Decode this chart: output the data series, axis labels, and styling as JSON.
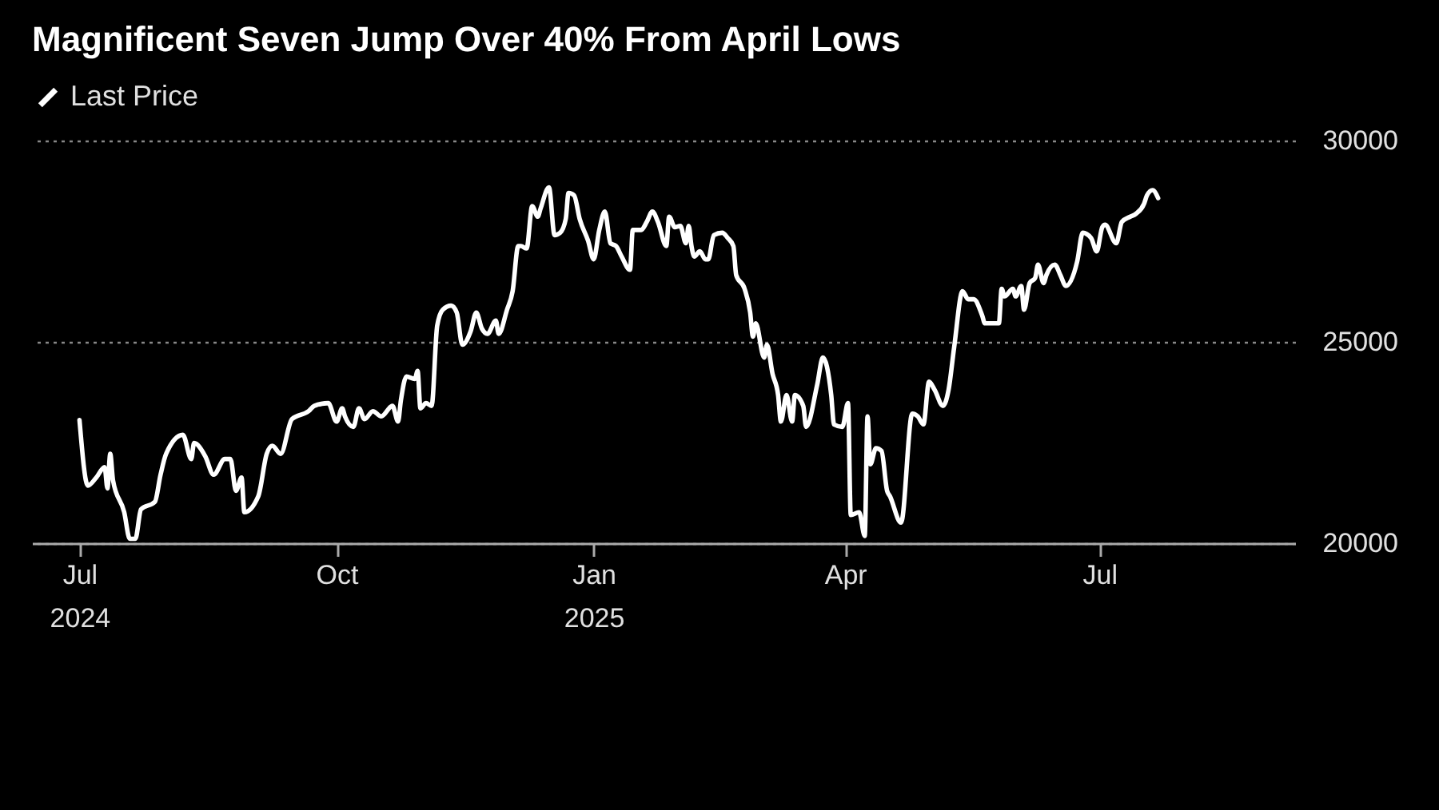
{
  "chart_data": {
    "type": "line",
    "title": "Magnificent Seven Jump Over 40% From April Lows",
    "x": [
      "2024-07-01",
      "2024-07-04",
      "2024-07-07",
      "2024-07-10",
      "2024-07-11",
      "2024-07-12",
      "2024-07-13",
      "2024-07-17",
      "2024-07-19",
      "2024-07-21",
      "2024-07-23",
      "2024-07-28",
      "2024-07-30",
      "2024-08-01",
      "2024-08-07",
      "2024-08-10",
      "2024-08-11",
      "2024-08-15",
      "2024-08-18",
      "2024-08-22",
      "2024-08-24",
      "2024-08-26",
      "2024-08-28",
      "2024-08-29",
      "2024-09-03",
      "2024-09-06",
      "2024-09-08",
      "2024-09-11",
      "2024-09-15",
      "2024-09-21",
      "2024-09-23",
      "2024-09-28",
      "2024-10-01",
      "2024-10-03",
      "2024-10-04",
      "2024-10-07",
      "2024-10-09",
      "2024-10-11",
      "2024-10-14",
      "2024-10-17",
      "2024-10-21",
      "2024-10-23",
      "2024-10-24",
      "2024-10-26",
      "2024-10-29",
      "2024-10-30",
      "2024-10-31",
      "2024-11-02",
      "2024-11-04",
      "2024-11-06",
      "2024-11-08",
      "2024-11-11",
      "2024-11-13",
      "2024-11-15",
      "2024-11-18",
      "2024-11-20",
      "2024-11-22",
      "2024-11-24",
      "2024-11-27",
      "2024-11-28",
      "2024-12-01",
      "2024-12-03",
      "2024-12-05",
      "2024-12-06",
      "2024-12-08",
      "2024-12-10",
      "2024-12-12",
      "2024-12-13",
      "2024-12-16",
      "2024-12-18",
      "2024-12-20",
      "2024-12-22",
      "2024-12-23",
      "2024-12-25",
      "2024-12-27",
      "2024-12-30",
      "2025-01-01",
      "2025-01-03",
      "2025-01-05",
      "2025-01-07",
      "2025-01-09",
      "2025-01-11",
      "2025-01-14",
      "2025-01-15",
      "2025-01-18",
      "2025-01-20",
      "2025-01-22",
      "2025-01-24",
      "2025-01-27",
      "2025-01-28",
      "2025-01-30",
      "2025-02-01",
      "2025-02-03",
      "2025-02-04",
      "2025-02-05",
      "2025-02-06",
      "2025-02-08",
      "2025-02-10",
      "2025-02-11",
      "2025-02-13",
      "2025-02-16",
      "2025-02-18",
      "2025-02-20",
      "2025-02-21",
      "2025-02-24",
      "2025-02-26",
      "2025-02-27",
      "2025-02-28",
      "2025-03-03",
      "2025-03-04",
      "2025-03-06",
      "2025-03-08",
      "2025-03-09",
      "2025-03-11",
      "2025-03-13",
      "2025-03-14",
      "2025-03-17",
      "2025-03-18",
      "2025-03-22",
      "2025-03-24",
      "2025-03-27",
      "2025-03-28",
      "2025-03-31",
      "2025-04-02",
      "2025-04-03",
      "2025-04-06",
      "2025-04-08",
      "2025-04-09",
      "2025-04-10",
      "2025-04-12",
      "2025-04-14",
      "2025-04-16",
      "2025-04-17",
      "2025-04-21",
      "2025-04-25",
      "2025-04-27",
      "2025-04-29",
      "2025-05-01",
      "2025-05-03",
      "2025-05-06",
      "2025-05-08",
      "2025-05-10",
      "2025-05-13",
      "2025-05-15",
      "2025-05-17",
      "2025-05-20",
      "2025-05-21",
      "2025-05-24",
      "2025-05-26",
      "2025-05-27",
      "2025-05-28",
      "2025-05-31",
      "2025-06-01",
      "2025-06-03",
      "2025-06-04",
      "2025-06-06",
      "2025-06-08",
      "2025-06-09",
      "2025-06-11",
      "2025-06-12",
      "2025-06-15",
      "2025-06-17",
      "2025-06-19",
      "2025-06-23",
      "2025-06-25",
      "2025-06-28",
      "2025-06-30",
      "2025-07-02",
      "2025-07-03",
      "2025-07-07",
      "2025-07-09",
      "2025-07-12",
      "2025-07-14",
      "2025-07-17",
      "2025-07-18",
      "2025-07-20",
      "2025-07-22"
    ],
    "series": [
      {
        "name": "Last Price",
        "color": "#ffffff",
        "values": [
          23060,
          21430,
          21630,
          21890,
          21360,
          22220,
          21560,
          20770,
          20110,
          20110,
          20840,
          21030,
          21700,
          22220,
          22690,
          22090,
          22490,
          22160,
          21700,
          22090,
          22090,
          21300,
          21630,
          20770,
          21170,
          22220,
          22420,
          22220,
          23080,
          23280,
          23410,
          23480,
          23020,
          23350,
          23150,
          22890,
          23350,
          23080,
          23280,
          23150,
          23410,
          23020,
          23540,
          24140,
          24080,
          24280,
          23350,
          23480,
          23410,
          25400,
          25800,
          25900,
          25730,
          24930,
          25270,
          25730,
          25330,
          25200,
          25530,
          25200,
          25800,
          26260,
          27380,
          27380,
          27320,
          28370,
          28110,
          28310,
          28840,
          27650,
          27710,
          28050,
          28700,
          28640,
          28050,
          27510,
          27050,
          27780,
          28240,
          27450,
          27380,
          27120,
          26790,
          27780,
          27780,
          27980,
          28240,
          27980,
          27380,
          28110,
          27850,
          27880,
          27450,
          27880,
          27380,
          27120,
          27250,
          27050,
          27050,
          27650,
          27710,
          27580,
          27380,
          26660,
          26320,
          25730,
          25130,
          25460,
          24610,
          24930,
          24210,
          23680,
          23020,
          23680,
          23020,
          23680,
          23410,
          22890,
          23940,
          24610,
          23680,
          22950,
          22890,
          23480,
          20700,
          20770,
          20180,
          23150,
          21960,
          22360,
          22290,
          21300,
          21170,
          20510,
          23220,
          23150,
          22950,
          24010,
          23810,
          23410,
          23810,
          24870,
          26260,
          26060,
          26060,
          25660,
          25460,
          25460,
          25460,
          26320,
          26130,
          26320,
          26130,
          26390,
          25800,
          26460,
          26590,
          26920,
          26460,
          26660,
          26920,
          26660,
          26390,
          26990,
          27710,
          27580,
          27250,
          27850,
          27910,
          27450,
          27980,
          28110,
          28180,
          28440,
          28640,
          28770,
          28570
        ]
      }
    ],
    "xlim": [
      "2024-06-14",
      "2025-09-09"
    ],
    "xticks": [
      {
        "value": "2024-07-01",
        "label": "Jul 2024"
      },
      {
        "value": "2024-10-01",
        "label": "Oct"
      },
      {
        "value": "2025-01-01",
        "label": "Jan 2025"
      },
      {
        "value": "2025-04-01",
        "label": "Apr"
      },
      {
        "value": "2025-07-01",
        "label": "Jul"
      }
    ],
    "ylim": [
      20000,
      30000
    ],
    "yticks": [
      20000,
      25000,
      30000
    ],
    "grid": "y",
    "legend": "top left"
  }
}
